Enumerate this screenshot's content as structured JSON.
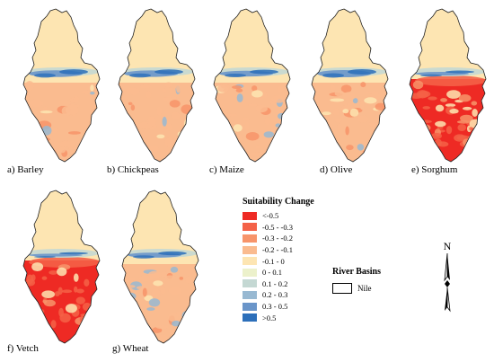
{
  "panels": [
    {
      "label": "a) Barley",
      "style": "mixed",
      "north_blue": 0.95,
      "south_red": 0.35
    },
    {
      "label": "b) Chickpeas",
      "style": "mixed",
      "north_blue": 0.9,
      "south_red": 0.25
    },
    {
      "label": "c) Maize",
      "style": "mixed",
      "north_blue": 0.8,
      "south_red": 0.3
    },
    {
      "label": "d) Olive",
      "style": "mixed",
      "north_blue": 1.0,
      "south_red": 0.45
    },
    {
      "label": "e) Sorghum",
      "style": "red",
      "north_blue": 0.5,
      "south_red": 1.0
    },
    {
      "label": "f) Vetch",
      "style": "red",
      "north_blue": 0.4,
      "south_red": 1.0
    },
    {
      "label": "g) Wheat",
      "style": "mixed",
      "north_blue": 0.7,
      "south_red": 0.25
    }
  ],
  "legend": {
    "title": "Suitability Change",
    "items": [
      {
        "label": "<-0.5",
        "color": "#ee2a24"
      },
      {
        "label": "-0.5 - -0.3",
        "color": "#f46147"
      },
      {
        "label": "-0.3 - -0.2",
        "color": "#f7946a"
      },
      {
        "label": "-0.2 - -0.1",
        "color": "#fabb8f"
      },
      {
        "label": "-0.1 - 0",
        "color": "#fde5b2"
      },
      {
        "label": "0 - 0.1",
        "color": "#ecf1cb"
      },
      {
        "label": "0.1 - 0.2",
        "color": "#c4d8d3"
      },
      {
        "label": "0.2 - 0.3",
        "color": "#98b9d2"
      },
      {
        "label": "0.3 - 0.5",
        "color": "#6a95c9"
      },
      {
        "label": ">0.5",
        "color": "#2c6fba"
      }
    ]
  },
  "river_basins": {
    "title": "River Basins",
    "item": "Nile"
  },
  "north_arrow": {
    "label": "N",
    "icon": "north-arrow-icon"
  }
}
